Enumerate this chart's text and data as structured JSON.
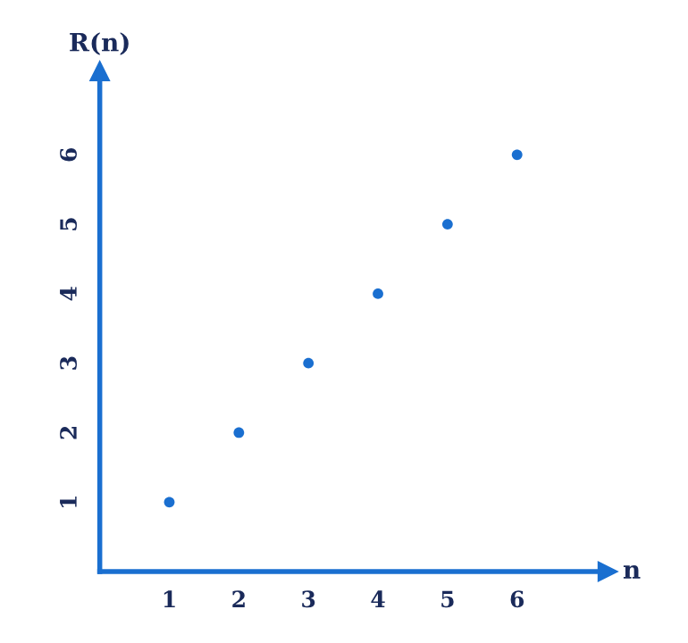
{
  "chart_data": {
    "type": "scatter",
    "xlabel": "n",
    "ylabel": "R(n)",
    "x": [
      1,
      2,
      3,
      4,
      5,
      6
    ],
    "series": [
      {
        "color": "#1a6fd0",
        "values": [
          1,
          2,
          3,
          4,
          5,
          6
        ]
      }
    ],
    "xlim": [
      0,
      7.3
    ],
    "ylim": [
      0,
      7.2
    ],
    "xticks": [
      1,
      2,
      3,
      4,
      5,
      6
    ],
    "yticks": [
      1,
      2,
      3,
      4,
      5,
      6
    ],
    "grid": false,
    "legend": false,
    "marker": "circle"
  }
}
